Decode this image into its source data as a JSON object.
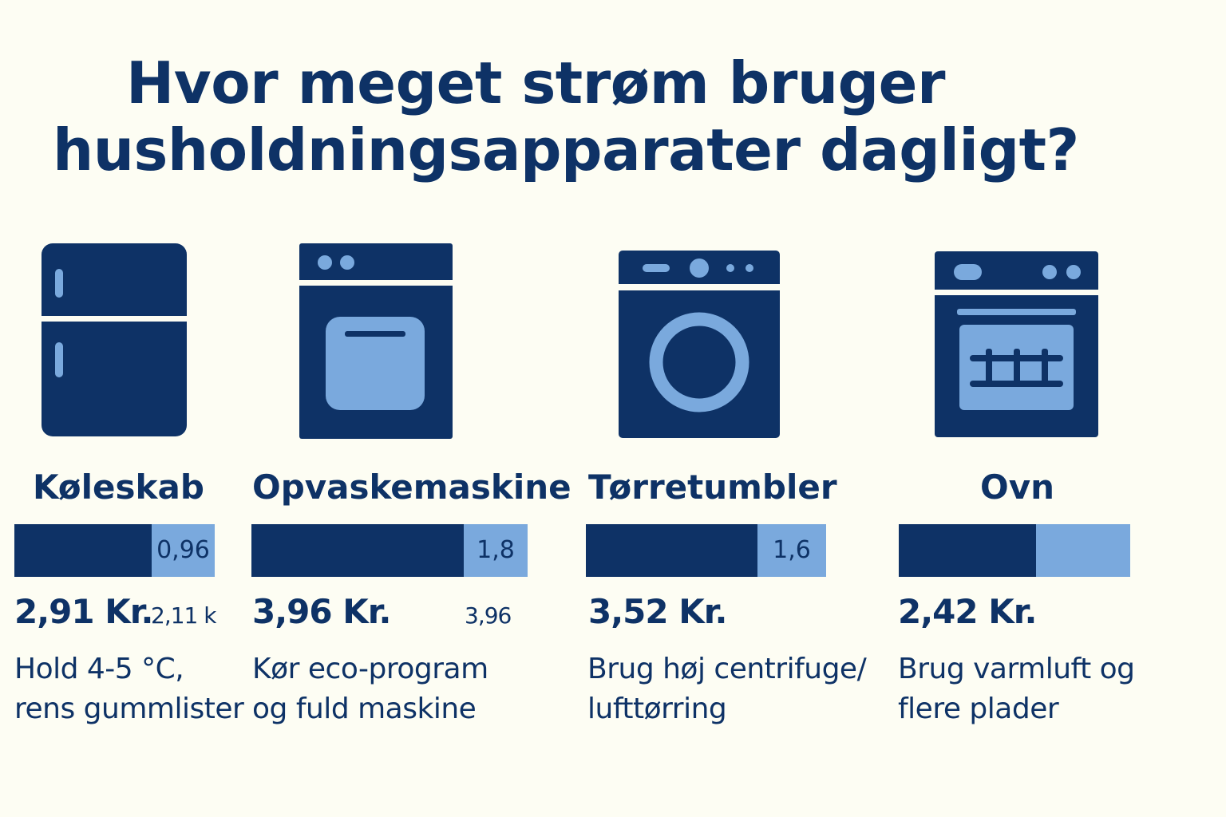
{
  "title": {
    "line1": "Hvor meget strøm bruger",
    "line2": "husholdningsapparater dagligt?"
  },
  "colors": {
    "dark": "#0e3266",
    "light": "#7aa9dd",
    "background": "#fdfdf3"
  },
  "appliances": [
    {
      "name": "Køleskab",
      "icon": "fridge-icon",
      "bar_label": "0,96",
      "cost": "2,91 Kr.",
      "secondary": "2,11 k",
      "tip": [
        "Hold 4-5 °C,",
        "rens gummlister"
      ]
    },
    {
      "name": "Opvaskemaskine",
      "icon": "dishwasher-icon",
      "bar_label": "1,8",
      "cost": "3,96 Kr.",
      "secondary": "3,96",
      "tip": [
        "Kør eco-program",
        "og fuld maskine"
      ]
    },
    {
      "name": "Tørretumbler",
      "icon": "tumble-dryer-icon",
      "bar_label": "1,6",
      "cost": "3,52 Kr.",
      "secondary": "",
      "tip": [
        "Brug høj centrifuge/",
        "lufttørring"
      ]
    },
    {
      "name": "Ovn",
      "icon": "oven-icon",
      "bar_label": "",
      "cost": "2,42 Kr.",
      "secondary": "",
      "tip": [
        "Brug varmluft og",
        "flere plader"
      ]
    }
  ]
}
